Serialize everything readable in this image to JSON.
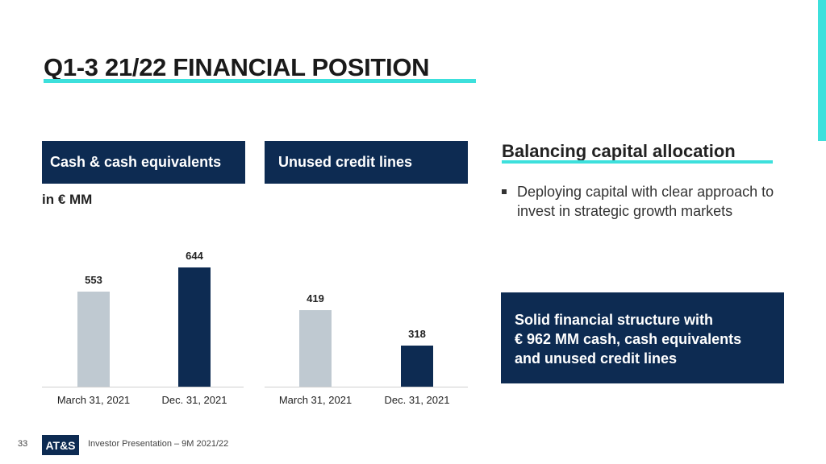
{
  "title": "Q1-3 21/22 FINANCIAL POSITION",
  "unit": "in € MM",
  "right": {
    "title": "Balancing capital allocation",
    "bullet": "Deploying capital with clear approach to invest in strategic growth markets",
    "box": "Solid financial structure with\n€ 962 MM cash, cash equivalents\nand unused credit lines"
  },
  "footer": {
    "page": "33",
    "logo": "AT&S",
    "text": "Investor Presentation – 9M 2021/22"
  },
  "colors": {
    "navy": "#0d2b52",
    "grey": "#bfc9d1",
    "teal": "#3de0dc"
  },
  "chart_data": [
    {
      "type": "bar",
      "title": "Cash & cash equivalents",
      "categories": [
        "March 31, 2021",
        "Dec. 31, 2021"
      ],
      "values": [
        553,
        644
      ],
      "labels": [
        "553",
        "644"
      ],
      "ylim": [
        190,
        650
      ]
    },
    {
      "type": "bar",
      "title": "Unused credit lines",
      "categories": [
        "March 31, 2021",
        "Dec. 31, 2021"
      ],
      "values": [
        419,
        318
      ],
      "labels": [
        "419",
        "318"
      ],
      "ylim": [
        200,
        544
      ]
    }
  ]
}
